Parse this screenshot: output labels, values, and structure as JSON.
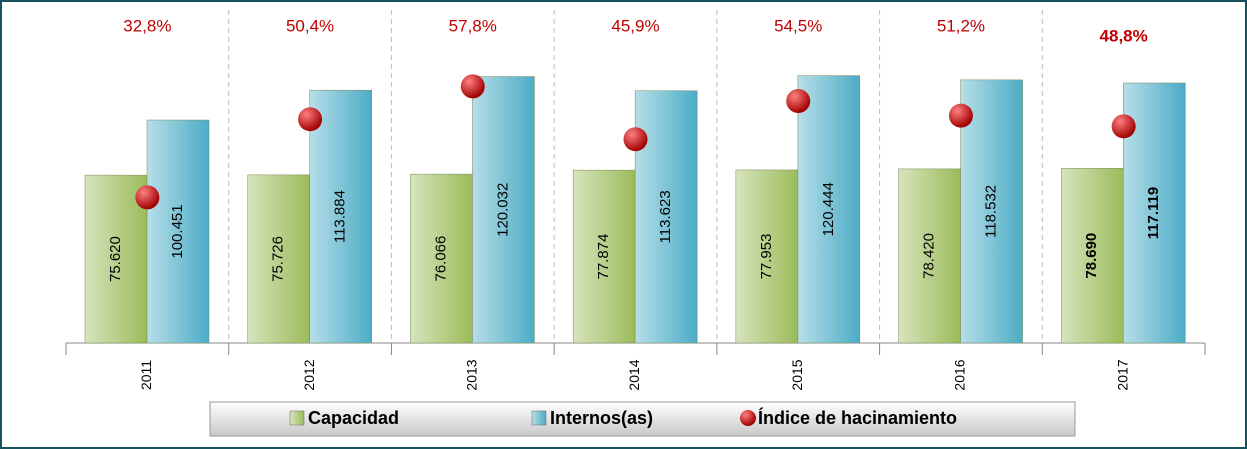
{
  "chart_data": {
    "type": "bar",
    "categories": [
      "2011",
      "2012",
      "2013",
      "2014",
      "2015",
      "2016",
      "2017"
    ],
    "series": [
      {
        "name": "Capacidad",
        "color": "#c4d79b",
        "values": [
          75620,
          75726,
          76066,
          77874,
          77953,
          78420,
          78690
        ],
        "value_labels": [
          "75.620",
          "75.726",
          "76.066",
          "77.874",
          "77.953",
          "78.420",
          "78.690"
        ]
      },
      {
        "name": "Internos(as)",
        "color": "#92cddc",
        "values": [
          100451,
          113884,
          120032,
          113623,
          120444,
          118532,
          117119
        ],
        "value_labels": [
          "100.451",
          "113.884",
          "120.032",
          "113.623",
          "120.444",
          "118.532",
          "117.119"
        ]
      },
      {
        "name": "Índice de hacinamiento",
        "color": "#c00000",
        "axis": "y2",
        "type": "scatter",
        "values": [
          32.8,
          50.4,
          57.8,
          45.9,
          54.5,
          51.2,
          48.8
        ],
        "value_labels": [
          "32,8%",
          "50,4%",
          "57,8%",
          "45,9%",
          "54,5%",
          "51,2%",
          "48,8%"
        ]
      }
    ],
    "ylim": [
      0,
      150000
    ],
    "y2lim": [
      0,
      75
    ],
    "bold_category_index": 6,
    "legend": "bottom"
  }
}
